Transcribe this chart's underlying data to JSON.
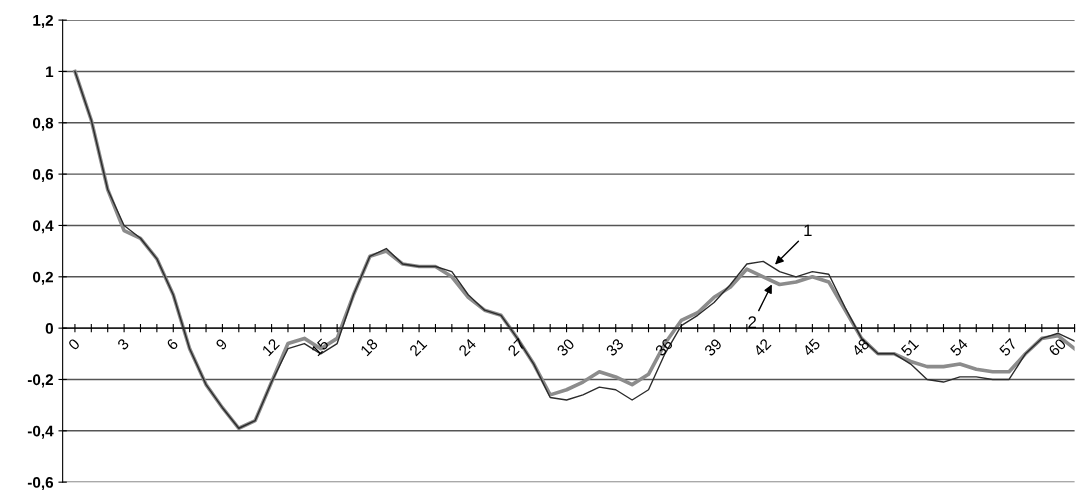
{
  "chart_data": {
    "type": "line",
    "x": [
      0,
      1,
      2,
      3,
      4,
      5,
      6,
      7,
      8,
      9,
      10,
      11,
      12,
      13,
      14,
      15,
      16,
      17,
      18,
      19,
      20,
      21,
      22,
      23,
      24,
      25,
      26,
      27,
      28,
      29,
      30,
      31,
      32,
      33,
      34,
      35,
      36,
      37,
      38,
      39,
      40,
      41,
      42,
      43,
      44,
      45,
      46,
      47,
      48,
      49,
      50,
      51,
      52,
      53,
      54,
      55,
      56,
      57,
      58,
      59,
      60,
      61
    ],
    "series": [
      {
        "color": "#2b2b2b",
        "values": [
          1.0,
          0.81,
          0.54,
          0.4,
          0.35,
          0.27,
          0.13,
          -0.08,
          -0.22,
          -0.31,
          -0.39,
          -0.36,
          -0.21,
          -0.08,
          -0.06,
          -0.1,
          -0.06,
          0.13,
          0.28,
          0.31,
          0.25,
          0.24,
          0.24,
          0.22,
          0.13,
          0.07,
          0.05,
          -0.04,
          -0.14,
          -0.27,
          -0.28,
          -0.26,
          -0.23,
          -0.24,
          -0.28,
          -0.24,
          -0.1,
          0.01,
          0.05,
          0.1,
          0.17,
          0.25,
          0.26,
          0.22,
          0.2,
          0.22,
          0.21,
          0.08,
          -0.04,
          -0.1,
          -0.1,
          -0.14,
          -0.2,
          -0.21,
          -0.19,
          -0.19,
          -0.2,
          -0.2,
          -0.1,
          -0.04,
          -0.02,
          -0.05
        ]
      },
      {
        "color": "#8c8c8c",
        "values": [
          1.0,
          0.81,
          0.54,
          0.38,
          0.35,
          0.27,
          0.13,
          -0.08,
          -0.22,
          -0.31,
          -0.39,
          -0.36,
          -0.21,
          -0.06,
          -0.04,
          -0.08,
          -0.04,
          0.13,
          0.28,
          0.3,
          0.25,
          0.24,
          0.24,
          0.2,
          0.12,
          0.07,
          0.05,
          -0.04,
          -0.14,
          -0.26,
          -0.24,
          -0.21,
          -0.17,
          -0.19,
          -0.22,
          -0.18,
          -0.06,
          0.03,
          0.06,
          0.12,
          0.16,
          0.23,
          0.2,
          0.17,
          0.18,
          0.2,
          0.18,
          0.07,
          -0.04,
          -0.1,
          -0.1,
          -0.13,
          -0.15,
          -0.15,
          -0.14,
          -0.16,
          -0.17,
          -0.17,
          -0.1,
          -0.04,
          -0.03,
          -0.08
        ]
      }
    ],
    "annotations": [
      {
        "text": "1",
        "x": 42.6,
        "y": 0.24
      },
      {
        "text": "2",
        "x": 42.6,
        "y": 0.18
      }
    ],
    "xlim": [
      -0.75,
      61
    ],
    "xticks": [
      0,
      {
        "value": 1,
        "label": null
      },
      {
        "value": 2,
        "label": null
      },
      3,
      {
        "value": 4,
        "label": null
      },
      {
        "value": 5,
        "label": null
      },
      6,
      {
        "value": 7,
        "label": null
      },
      {
        "value": 8,
        "label": null
      },
      9,
      {
        "value": 10,
        "label": null
      },
      {
        "value": 11,
        "label": null
      },
      12,
      {
        "value": 13,
        "label": null
      },
      {
        "value": 14,
        "label": null
      },
      15,
      {
        "value": 16,
        "label": null
      },
      {
        "value": 17,
        "label": null
      },
      18,
      {
        "value": 19,
        "label": null
      },
      {
        "value": 20,
        "label": null
      },
      21,
      {
        "value": 22,
        "label": null
      },
      {
        "value": 23,
        "label": null
      },
      24,
      {
        "value": 25,
        "label": null
      },
      {
        "value": 26,
        "label": null
      },
      27,
      {
        "value": 28,
        "label": null
      },
      {
        "value": 29,
        "label": null
      },
      30,
      {
        "value": 31,
        "label": null
      },
      {
        "value": 32,
        "label": null
      },
      33,
      {
        "value": 34,
        "label": null
      },
      {
        "value": 35,
        "label": null
      },
      36,
      {
        "value": 37,
        "label": null
      },
      {
        "value": 38,
        "label": null
      },
      39,
      {
        "value": 40,
        "label": null
      },
      {
        "value": 41,
        "label": null
      },
      42,
      {
        "value": 43,
        "label": null
      },
      {
        "value": 44,
        "label": null
      },
      45,
      {
        "value": 46,
        "label": null
      },
      {
        "value": 47,
        "label": null
      },
      48,
      {
        "value": 49,
        "label": null
      },
      {
        "value": 50,
        "label": null
      },
      51,
      {
        "value": 52,
        "label": null
      },
      {
        "value": 53,
        "label": null
      },
      54,
      {
        "value": 55,
        "label": null
      },
      {
        "value": 56,
        "label": null
      },
      57,
      {
        "value": 58,
        "label": null
      },
      {
        "value": 59,
        "label": null
      },
      60,
      {
        "value": 61,
        "label": null
      }
    ],
    "ylim": [
      -0.6,
      1.2
    ],
    "yticks": [
      {
        "value": -0.6,
        "label": "-0,6"
      },
      {
        "value": -0.4,
        "label": "-0,4"
      },
      {
        "value": -0.2,
        "label": "-0,2"
      },
      0,
      {
        "value": 0.2,
        "label": "0,2"
      },
      {
        "value": 0.4,
        "label": "0,4"
      },
      {
        "value": 0.6,
        "label": "0,6"
      },
      {
        "value": 0.8,
        "label": "0,8"
      },
      1,
      {
        "value": 1.2,
        "label": "1,2"
      }
    ],
    "grid": "y",
    "legend": false,
    "marker": "none",
    "line_style": "solid"
  }
}
